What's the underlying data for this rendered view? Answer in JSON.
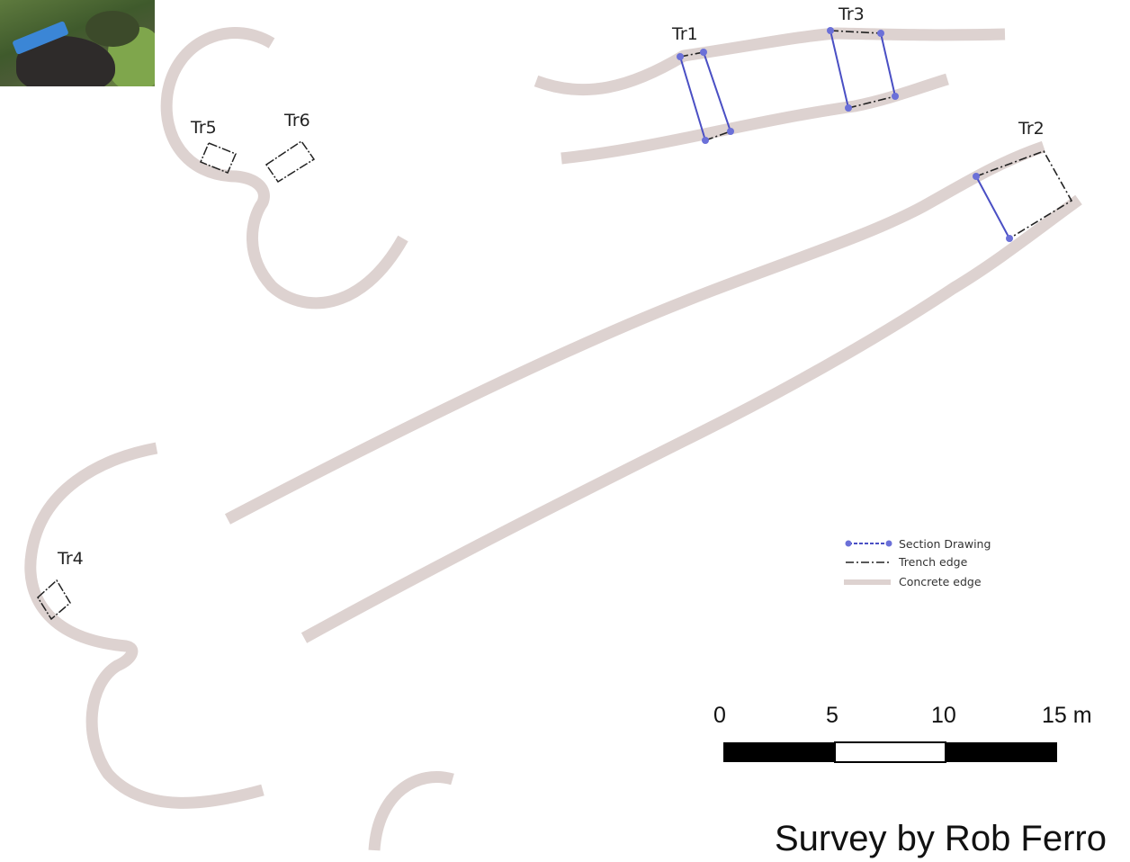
{
  "trench_labels": {
    "tr1": "Tr1",
    "tr2": "Tr2",
    "tr3": "Tr3",
    "tr4": "Tr4",
    "tr5": "Tr5",
    "tr6": "Tr6"
  },
  "legend": {
    "section_drawing": "Section Drawing",
    "trench_edge": "Trench edge",
    "concrete_edge": "Concrete edge"
  },
  "scale_bar": {
    "ticks": [
      "0",
      "5",
      "10",
      "15 m"
    ]
  },
  "credit": "Survey by Rob Ferro",
  "colors": {
    "concrete_edge": "#ddd2d0",
    "section_drawing": "#4a4fc4",
    "trench_edge": "#222222"
  }
}
